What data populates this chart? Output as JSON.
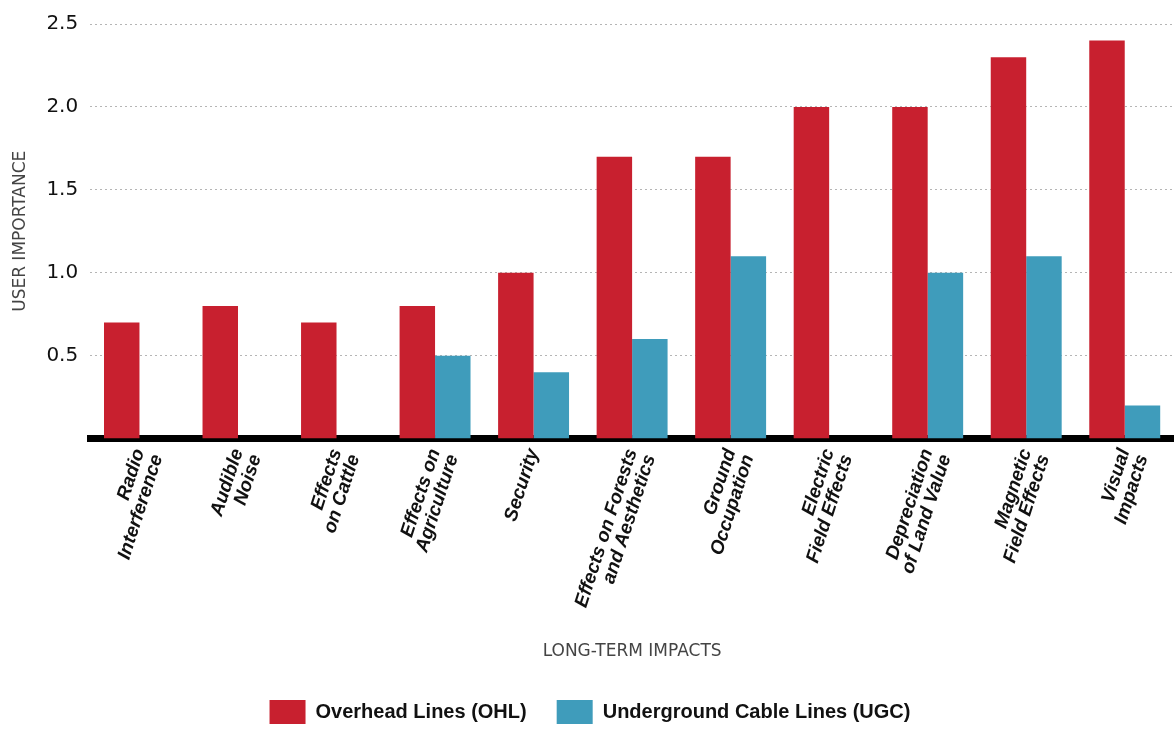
{
  "chart_data": {
    "type": "bar",
    "xlabel": "LONG-TERM IMPACTS",
    "ylabel": "USER IMPORTANCE",
    "categories": [
      "Radio\nInterference",
      "Audible\nNoise",
      "Effects\non Cattle",
      "Effects on\nAgriculture",
      "Security",
      "Effects on Forests\nand Aesthetics",
      "Ground\nOccupation",
      "Electric\nField Effects",
      "Depreciation\nof Land Value",
      "Magnetic\nField Effects",
      "Visual\nImpacts"
    ],
    "series": [
      {
        "name": "Overhead Lines (OHL)",
        "color": "#c8202f",
        "values": [
          0.7,
          0.8,
          0.7,
          0.8,
          1.0,
          1.7,
          1.7,
          2.0,
          2.0,
          2.3,
          2.4
        ]
      },
      {
        "name": "Underground Cable Lines (UGC)",
        "color": "#3f9cbb",
        "values": [
          null,
          null,
          null,
          0.5,
          0.4,
          0.6,
          1.1,
          null,
          1.0,
          1.1,
          0.2
        ]
      }
    ],
    "ylim": [
      0,
      2.5
    ],
    "yticks": [
      {
        "value": 0.5,
        "label": "0.5"
      },
      {
        "value": 1,
        "label": "1.0"
      },
      {
        "value": 1.5,
        "label": "1.5"
      },
      {
        "value": 2,
        "label": "2.0"
      },
      {
        "value": 2.5,
        "label": "2.5"
      }
    ],
    "grid": "y",
    "legend": "bottom"
  }
}
